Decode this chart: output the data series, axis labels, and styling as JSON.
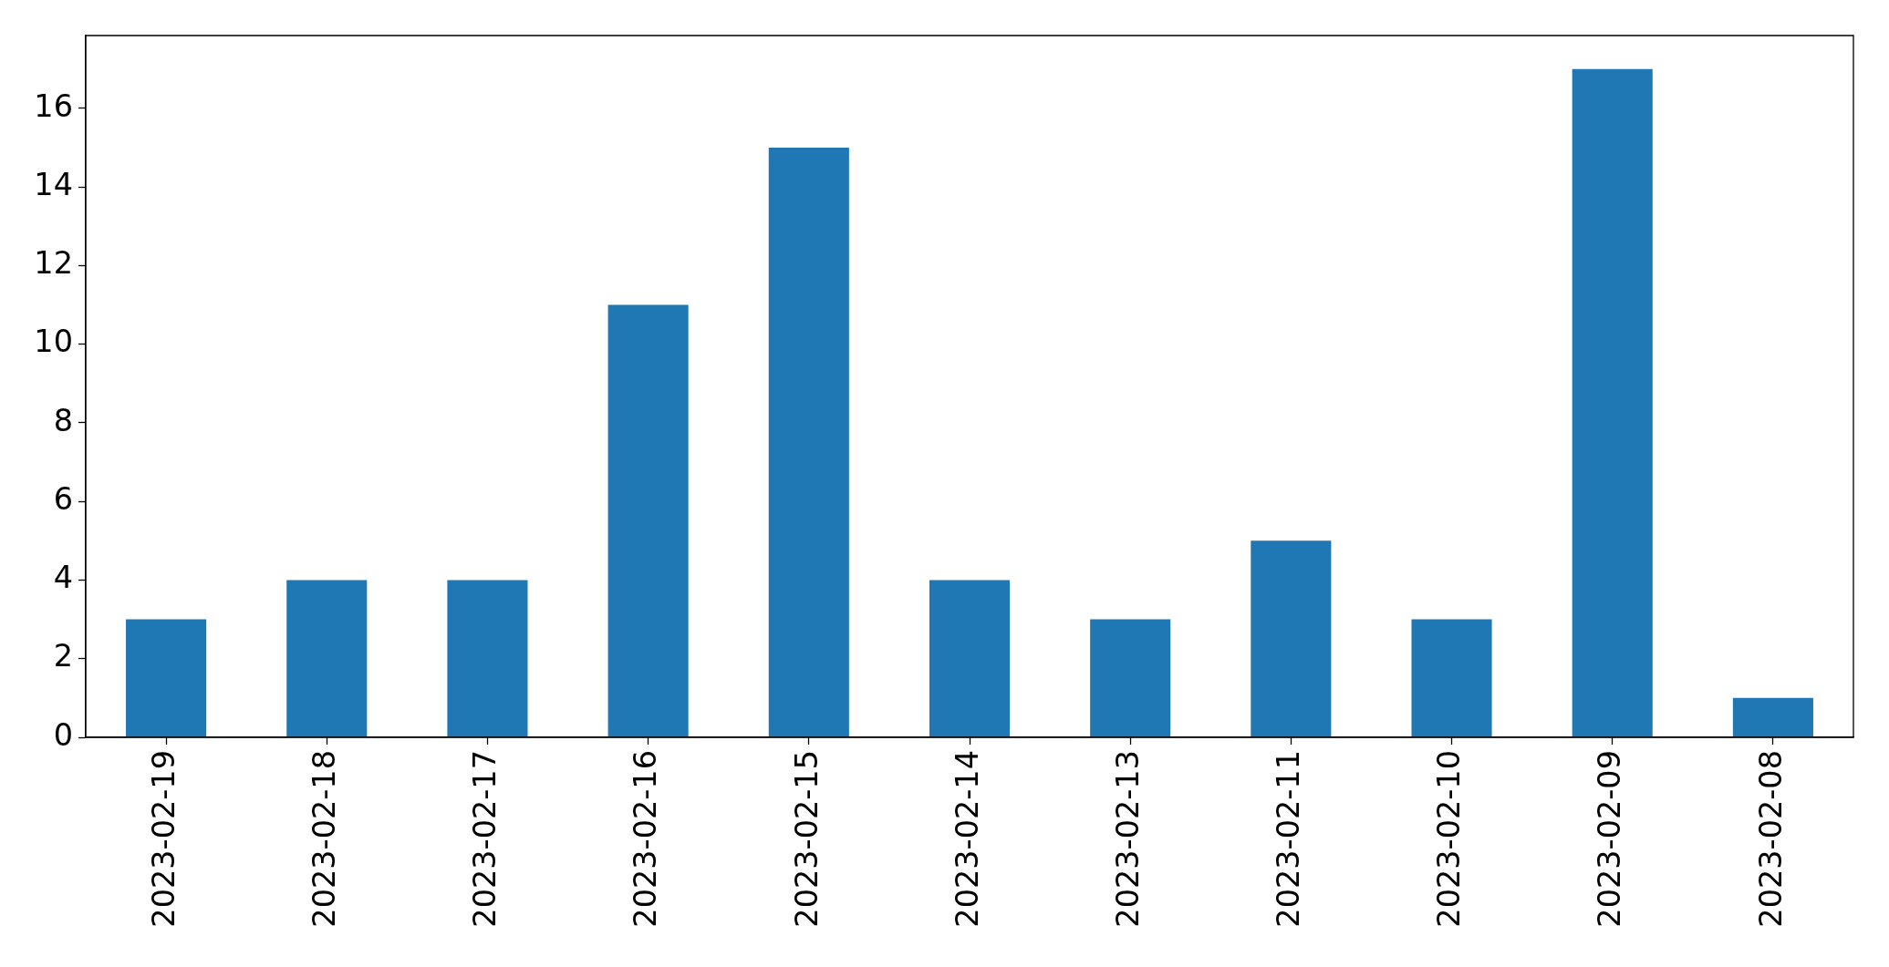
{
  "chart_data": {
    "type": "bar",
    "categories": [
      "2023-02-19",
      "2023-02-18",
      "2023-02-17",
      "2023-02-16",
      "2023-02-15",
      "2023-02-14",
      "2023-02-13",
      "2023-02-11",
      "2023-02-10",
      "2023-02-09",
      "2023-02-08"
    ],
    "values": [
      3,
      4,
      4,
      11,
      15,
      4,
      3,
      5,
      3,
      17,
      1
    ],
    "color": "#1f77b4",
    "ylim": [
      0,
      17.85
    ],
    "yticks": [
      0,
      2,
      4,
      6,
      8,
      10,
      12,
      14,
      16
    ],
    "grid": false,
    "legend": false
  }
}
